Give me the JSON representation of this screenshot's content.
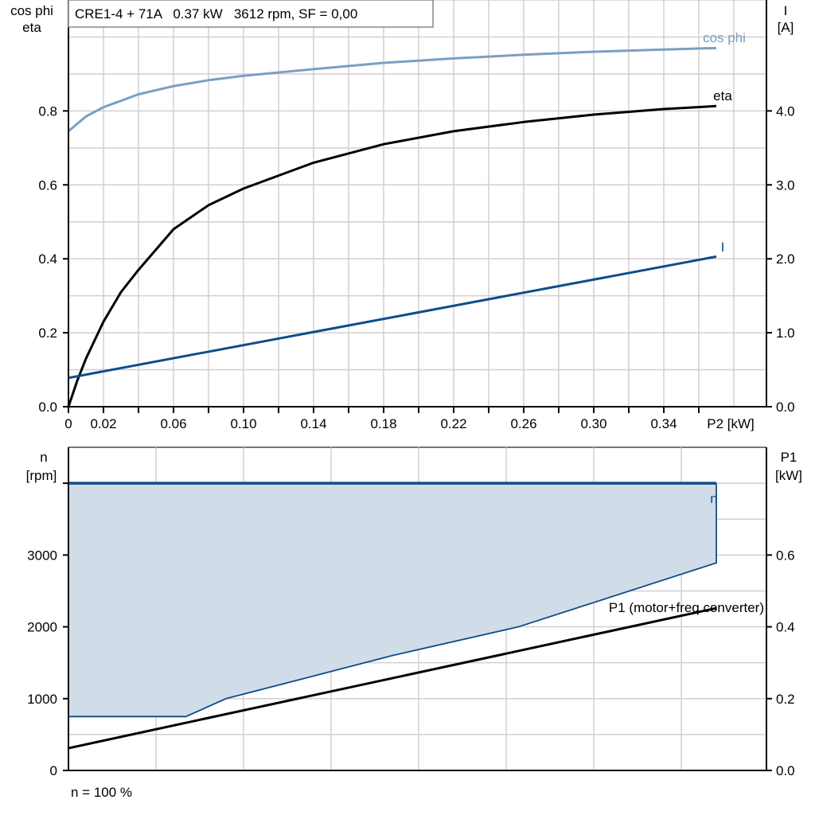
{
  "colors": {
    "cosphi": "#7a9fc2",
    "eta": "#000000",
    "current": "#0e4c8a",
    "speed": "#0e4c8a",
    "speed_fill": "#d0dce8",
    "p1": "#000000"
  },
  "chart_data": [
    {
      "type": "line",
      "title": "CRE1-4 + 71A   0.37 kW   3612 rpm, SF = 0,00",
      "xlabel": "P2 [kW]",
      "ylabel_left": [
        "cos phi",
        "eta"
      ],
      "ylabel_right": [
        "I",
        "[A]"
      ],
      "xlim": [
        0,
        0.4
      ],
      "ylim_left": [
        0,
        1.1
      ],
      "ylim_right": [
        0,
        5.5
      ],
      "grid": true,
      "x_ticks": [
        "0",
        "0.02",
        "0.06",
        "0.10",
        "0.14",
        "0.18",
        "0.22",
        "0.26",
        "0.30",
        "0.34"
      ],
      "y_ticks_left": [
        "0.0",
        "0.2",
        "0.4",
        "0.6",
        "0.8"
      ],
      "y_ticks_right": [
        "0.0",
        "1.0",
        "2.0",
        "3.0",
        "4.0"
      ],
      "series": [
        {
          "name": "cos phi",
          "axis": "left",
          "x": [
            0,
            0.01,
            0.02,
            0.04,
            0.06,
            0.08,
            0.1,
            0.14,
            0.18,
            0.22,
            0.26,
            0.3,
            0.34,
            0.37
          ],
          "y": [
            0.745,
            0.785,
            0.81,
            0.845,
            0.867,
            0.883,
            0.895,
            0.913,
            0.93,
            0.942,
            0.952,
            0.96,
            0.966,
            0.97
          ]
        },
        {
          "name": "eta",
          "axis": "left",
          "x": [
            0,
            0.005,
            0.01,
            0.02,
            0.03,
            0.04,
            0.06,
            0.08,
            0.1,
            0.14,
            0.18,
            0.22,
            0.26,
            0.3,
            0.34,
            0.37
          ],
          "y": [
            0,
            0.07,
            0.13,
            0.23,
            0.31,
            0.37,
            0.48,
            0.545,
            0.59,
            0.66,
            0.71,
            0.745,
            0.77,
            0.79,
            0.805,
            0.813
          ]
        },
        {
          "name": "I",
          "axis": "right",
          "x": [
            0,
            0.37
          ],
          "y": [
            0.39,
            2.03
          ]
        }
      ]
    },
    {
      "type": "area",
      "xlim": [
        0,
        0.4
      ],
      "ylim_left": [
        0,
        4500
      ],
      "ylim_right": [
        0,
        0.9
      ],
      "ylabel_left": [
        "n",
        "[rpm]"
      ],
      "ylabel_right": [
        "P1",
        "[kW]"
      ],
      "grid": true,
      "y_ticks_left": [
        "0",
        "1000",
        "2000",
        "3000"
      ],
      "y_ticks_right": [
        "0.0",
        "0.2",
        "0.4",
        "0.6"
      ],
      "footnote": "n = 100 %",
      "series": [
        {
          "name": "n",
          "axis": "left",
          "upper": {
            "x": [
              0,
              0.37
            ],
            "y": [
              4000,
              4000
            ]
          },
          "lower": {
            "x": [
              0,
              0.067,
              0.09,
              0.185,
              0.257,
              0.37
            ],
            "y": [
              750,
              750,
              1000,
              1600,
              2000,
              2890
            ]
          }
        },
        {
          "name": "P1 (motor+freq.converter)",
          "axis": "right",
          "x": [
            0,
            0.37
          ],
          "y": [
            0.062,
            0.452
          ]
        }
      ]
    }
  ]
}
